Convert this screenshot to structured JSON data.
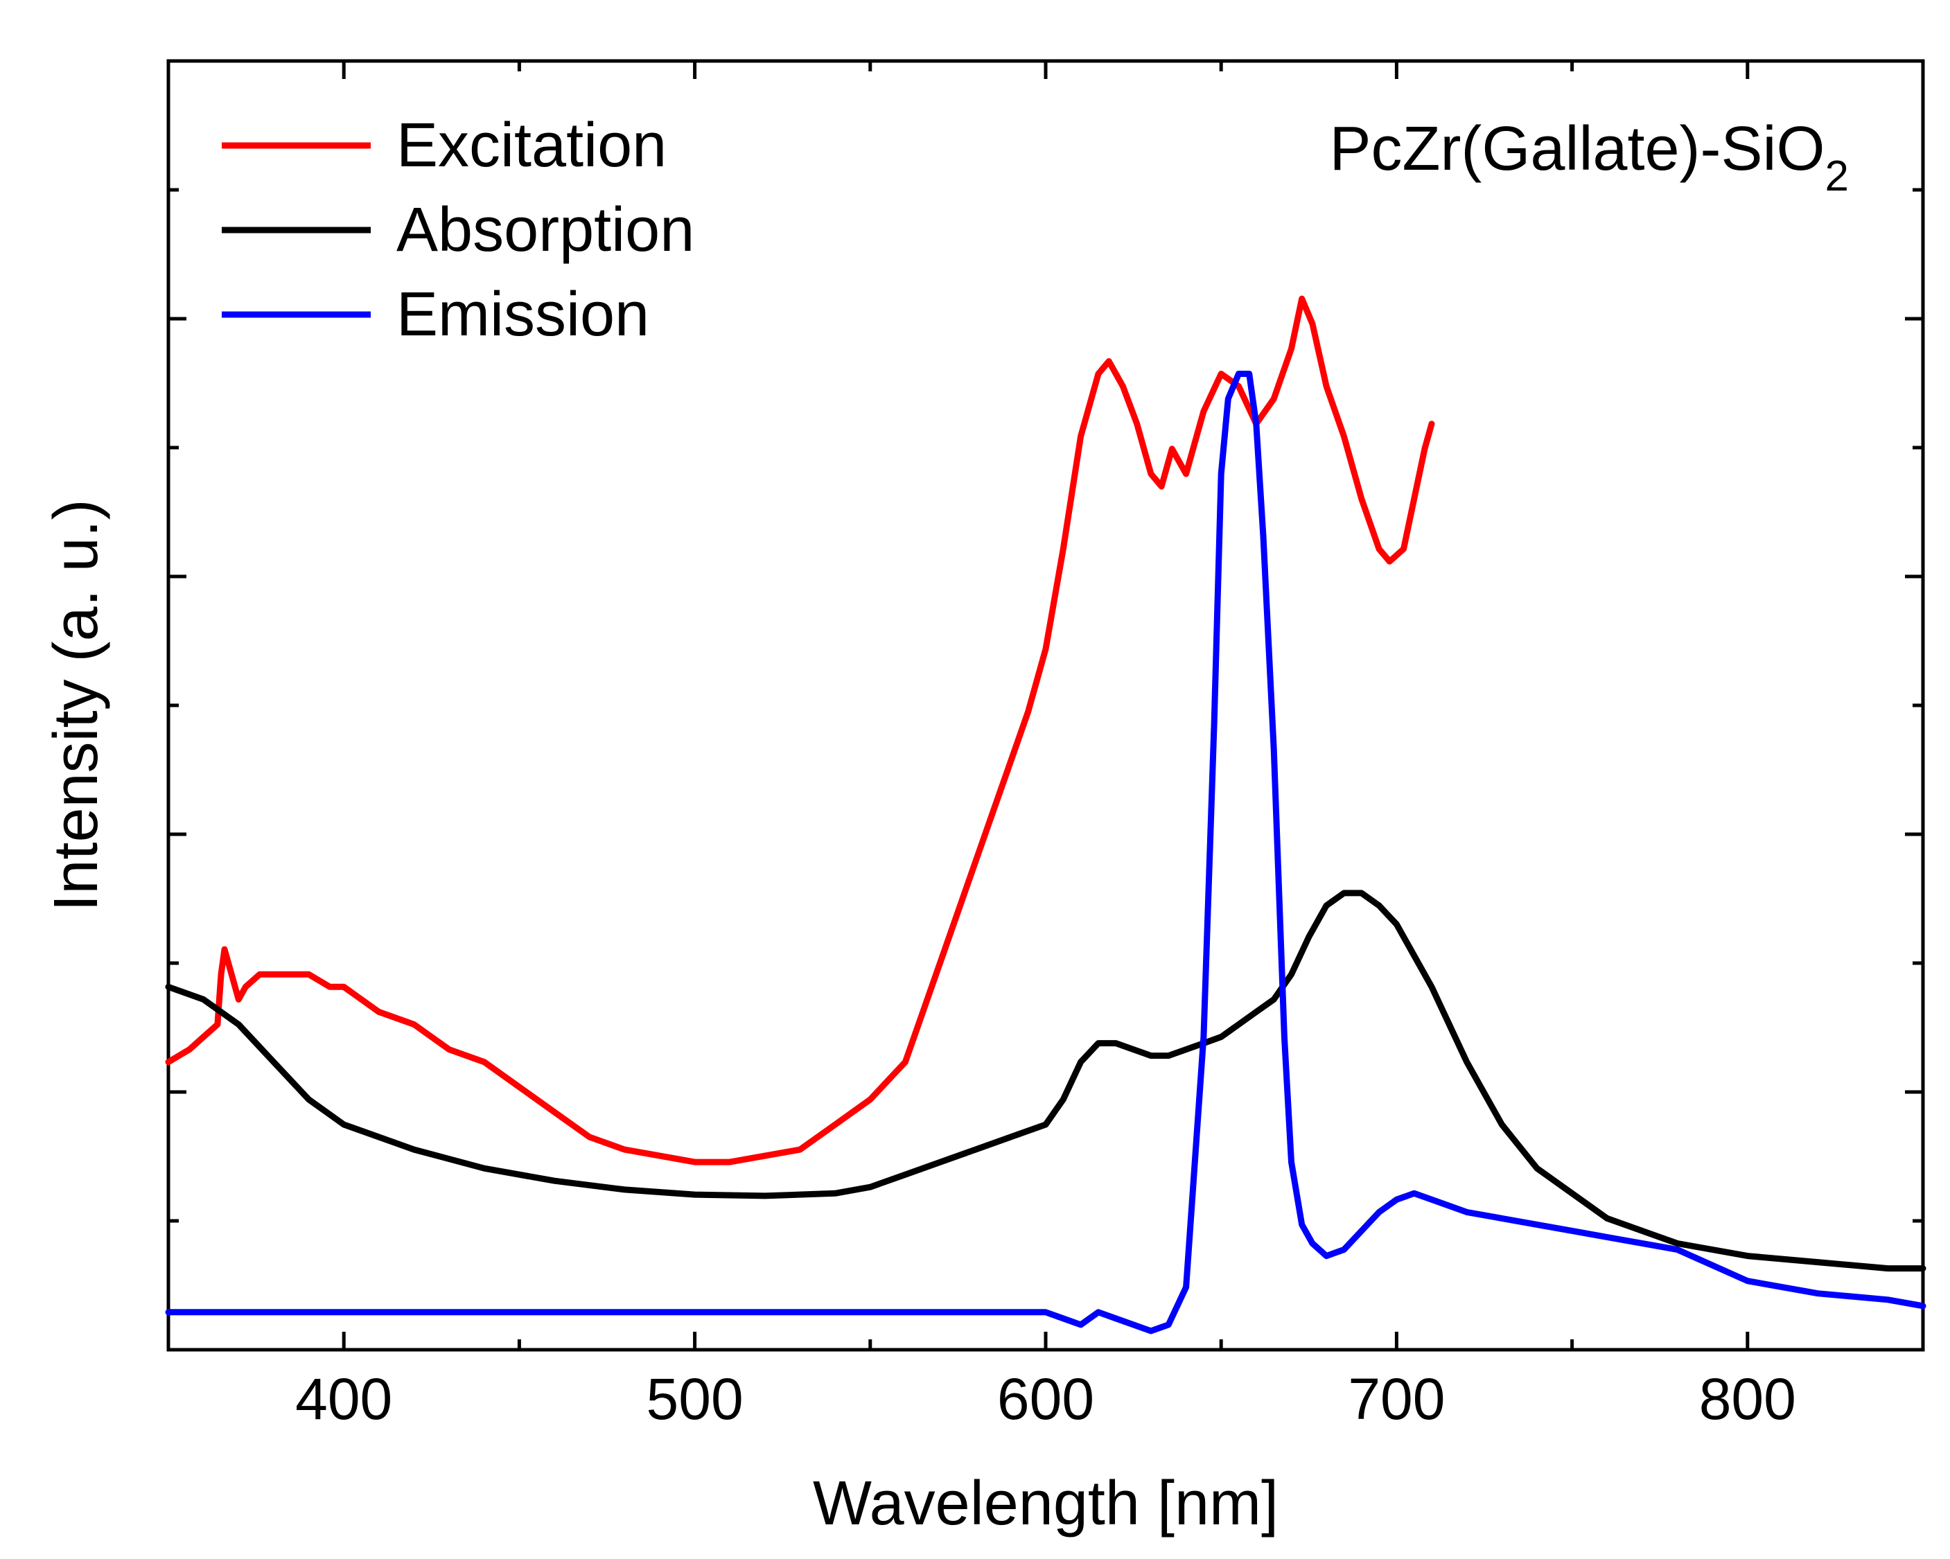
{
  "chart_data": {
    "type": "line",
    "title": "",
    "annotation": {
      "main": "PcZr(Gallate)-SiO",
      "sub": "2"
    },
    "xlabel": "Wavelength [nm]",
    "ylabel": "Intensity (a. u.)",
    "xlim": [
      350,
      850
    ],
    "ylim": [
      0,
      1.03
    ],
    "x_ticks": [
      400,
      500,
      600,
      700,
      800
    ],
    "x_tick_labels": [
      "400",
      "500",
      "600",
      "700",
      "800"
    ],
    "y_tick_labels_shown": false,
    "legend_position": "top-left",
    "series": [
      {
        "name": "Excitation",
        "color": "#ff0000",
        "x": [
          350,
          356,
          360,
          364,
          365,
          366,
          368,
          370,
          372,
          376,
          382,
          390,
          396,
          400,
          410,
          420,
          430,
          440,
          450,
          460,
          470,
          480,
          490,
          500,
          510,
          520,
          530,
          540,
          550,
          560,
          565,
          570,
          575,
          580,
          585,
          590,
          595,
          600,
          605,
          610,
          615,
          618,
          622,
          626,
          630,
          633,
          636,
          640,
          645,
          650,
          655,
          660,
          665,
          670,
          673,
          676,
          680,
          685,
          690,
          695,
          698,
          702,
          705,
          708,
          710
        ],
        "y": [
          0.23,
          0.24,
          0.25,
          0.26,
          0.3,
          0.32,
          0.3,
          0.28,
          0.29,
          0.3,
          0.3,
          0.3,
          0.29,
          0.29,
          0.27,
          0.26,
          0.24,
          0.23,
          0.21,
          0.19,
          0.17,
          0.16,
          0.155,
          0.15,
          0.15,
          0.155,
          0.16,
          0.18,
          0.2,
          0.23,
          0.27,
          0.31,
          0.35,
          0.39,
          0.43,
          0.47,
          0.51,
          0.56,
          0.64,
          0.73,
          0.78,
          0.79,
          0.77,
          0.74,
          0.7,
          0.69,
          0.72,
          0.7,
          0.75,
          0.78,
          0.77,
          0.74,
          0.76,
          0.8,
          0.84,
          0.82,
          0.77,
          0.73,
          0.68,
          0.64,
          0.63,
          0.64,
          0.68,
          0.72,
          0.74
        ]
      },
      {
        "name": "Absorption",
        "color": "#000000",
        "x": [
          350,
          360,
          370,
          380,
          390,
          400,
          420,
          440,
          460,
          480,
          500,
          520,
          540,
          550,
          560,
          570,
          580,
          590,
          600,
          605,
          610,
          615,
          620,
          625,
          630,
          635,
          640,
          645,
          650,
          655,
          660,
          665,
          670,
          675,
          680,
          685,
          690,
          695,
          700,
          710,
          720,
          730,
          740,
          760,
          780,
          800,
          820,
          840,
          850
        ],
        "y": [
          0.29,
          0.28,
          0.26,
          0.23,
          0.2,
          0.18,
          0.16,
          0.145,
          0.135,
          0.128,
          0.124,
          0.123,
          0.125,
          0.13,
          0.14,
          0.15,
          0.16,
          0.17,
          0.18,
          0.2,
          0.23,
          0.245,
          0.245,
          0.24,
          0.235,
          0.235,
          0.24,
          0.245,
          0.25,
          0.26,
          0.27,
          0.28,
          0.3,
          0.33,
          0.355,
          0.365,
          0.365,
          0.355,
          0.34,
          0.29,
          0.23,
          0.18,
          0.145,
          0.105,
          0.085,
          0.075,
          0.07,
          0.065,
          0.065
        ]
      },
      {
        "name": "Emission",
        "color": "#0000ff",
        "x": [
          350,
          400,
          450,
          500,
          550,
          580,
          600,
          610,
          615,
          620,
          625,
          630,
          635,
          640,
          645,
          648,
          650,
          652,
          655,
          658,
          660,
          662,
          665,
          668,
          670,
          673,
          676,
          680,
          685,
          690,
          695,
          700,
          705,
          710,
          720,
          740,
          760,
          780,
          800,
          820,
          840,
          850
        ],
        "y": [
          0.03,
          0.03,
          0.03,
          0.03,
          0.03,
          0.03,
          0.03,
          0.02,
          0.03,
          0.025,
          0.02,
          0.015,
          0.02,
          0.05,
          0.25,
          0.5,
          0.7,
          0.76,
          0.78,
          0.78,
          0.74,
          0.65,
          0.48,
          0.25,
          0.15,
          0.1,
          0.085,
          0.075,
          0.08,
          0.095,
          0.11,
          0.12,
          0.125,
          0.12,
          0.11,
          0.1,
          0.09,
          0.08,
          0.055,
          0.045,
          0.04,
          0.035
        ]
      }
    ]
  }
}
